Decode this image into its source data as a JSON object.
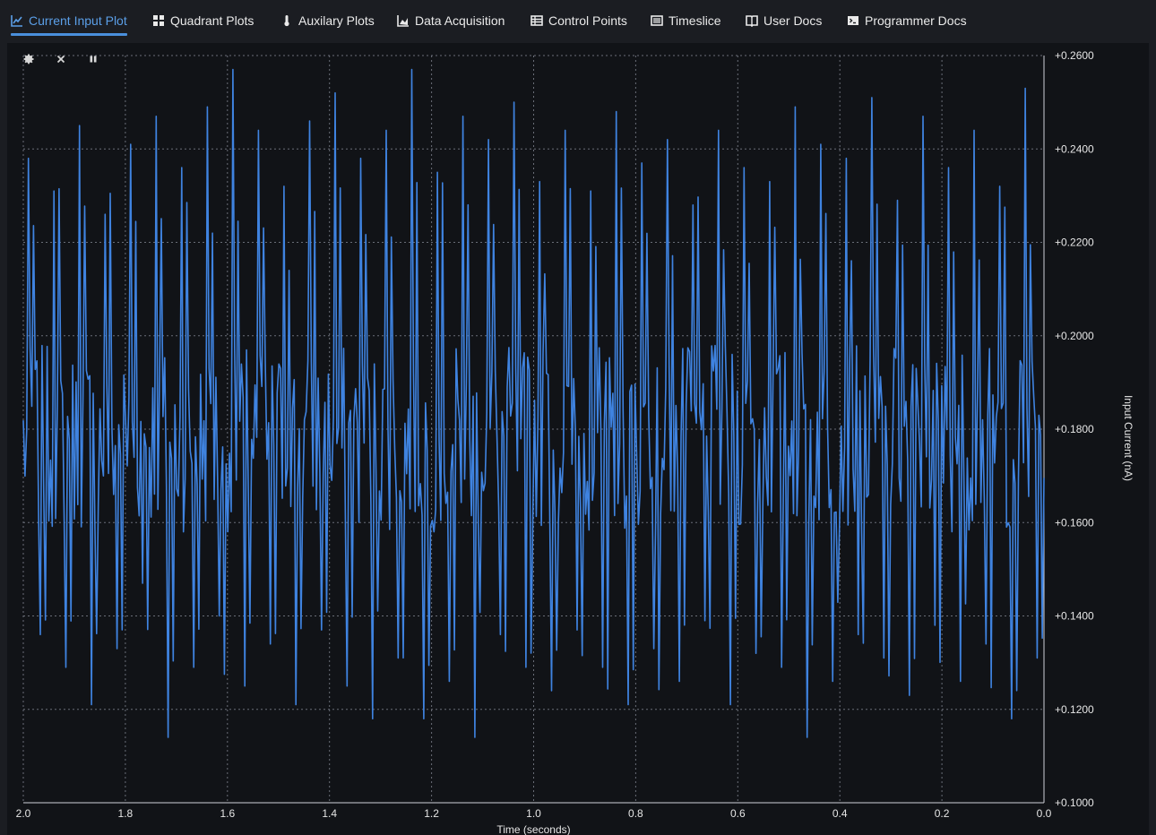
{
  "tabs": [
    {
      "label": "Current Input Plot",
      "icon": "line-chart-icon",
      "active": true
    },
    {
      "label": "Quadrant Plots",
      "icon": "grid-icon",
      "active": false
    },
    {
      "label": "Auxilary Plots",
      "icon": "thermometer-icon",
      "active": false
    },
    {
      "label": "Data Acquisition",
      "icon": "area-chart-icon",
      "active": false
    },
    {
      "label": "Control Points",
      "icon": "table-icon",
      "active": false
    },
    {
      "label": "Timeslice",
      "icon": "list-icon",
      "active": false
    },
    {
      "label": "User Docs",
      "icon": "book-icon",
      "active": false
    },
    {
      "label": "Programmer Docs",
      "icon": "terminal-icon",
      "active": false
    }
  ],
  "plot_toolbar": {
    "settings_icon": "gear-icon",
    "clear_icon": "close-icon",
    "pause_icon": "pause-icon"
  },
  "colors": {
    "accent": "#4a8fdc",
    "series": "#3f83e0",
    "plot_bg": "#111317",
    "page_bg": "#1b1d22"
  },
  "chart_data": {
    "type": "line",
    "xlabel": "Time (seconds)",
    "ylabel": "Input Current (nA)",
    "xlim": [
      2.0,
      0.0
    ],
    "ylim": [
      0.1,
      0.26
    ],
    "x_ticks": [
      "2.0",
      "1.8",
      "1.6",
      "1.4",
      "1.2",
      "1.0",
      "0.8",
      "0.6",
      "0.4",
      "0.2",
      "0.0"
    ],
    "y_ticks": [
      "+0.1000",
      "+0.1200",
      "+0.1400",
      "+0.1600",
      "+0.1800",
      "+0.2000",
      "+0.2200",
      "+0.2400",
      "+0.2600"
    ],
    "grid": true,
    "y_axis_side": "right",
    "series": [
      {
        "sample_count": 600,
        "mean": 0.178,
        "min": 0.114,
        "max": 0.257,
        "peaks_approx": [
          0.238,
          0.231,
          0.245,
          0.226,
          0.241,
          0.247,
          0.236,
          0.249,
          0.257,
          0.244,
          0.232,
          0.246,
          0.252,
          0.238,
          0.244,
          0.257,
          0.235,
          0.247,
          0.242,
          0.25,
          0.233,
          0.244,
          0.231,
          0.248,
          0.237,
          0.242,
          0.228,
          0.244,
          0.236,
          0.233,
          0.249,
          0.241,
          0.238,
          0.251,
          0.229,
          0.247,
          0.236,
          0.244,
          0.232,
          0.253,
          0.242,
          0.238,
          0.247,
          0.251,
          0.244,
          0.236,
          0.248,
          0.23,
          0.246,
          0.252,
          0.238,
          0.243,
          0.249,
          0.234,
          0.247,
          0.241,
          0.236,
          0.249,
          0.228,
          0.247,
          0.235,
          0.244,
          0.251,
          0.239,
          0.234,
          0.245,
          0.231,
          0.247,
          0.242,
          0.25,
          0.244,
          0.238,
          0.247,
          0.232,
          0.249,
          0.241,
          0.236,
          0.244,
          0.246,
          0.227
        ],
        "troughs_approx": [
          0.136,
          0.129,
          0.121,
          0.133,
          0.147,
          0.114,
          0.129,
          0.14,
          0.125,
          0.134,
          0.121,
          0.137,
          0.125,
          0.118,
          0.131,
          0.118,
          0.126,
          0.114,
          0.136,
          0.129,
          0.124,
          0.137,
          0.129,
          0.121,
          0.133,
          0.126,
          0.139,
          0.121,
          0.132,
          0.129,
          0.114,
          0.126,
          0.136,
          0.131,
          0.123,
          0.138,
          0.126,
          0.134,
          0.118,
          0.131,
          0.127,
          0.121,
          0.135,
          0.123,
          0.117,
          0.131,
          0.126,
          0.139,
          0.121,
          0.133,
          0.125,
          0.136,
          0.129,
          0.122,
          0.134,
          0.126,
          0.12,
          0.132,
          0.135,
          0.128,
          0.118,
          0.131,
          0.126,
          0.139,
          0.123,
          0.134,
          0.128,
          0.121,
          0.136,
          0.127,
          0.13,
          0.118,
          0.133
        ]
      }
    ]
  }
}
